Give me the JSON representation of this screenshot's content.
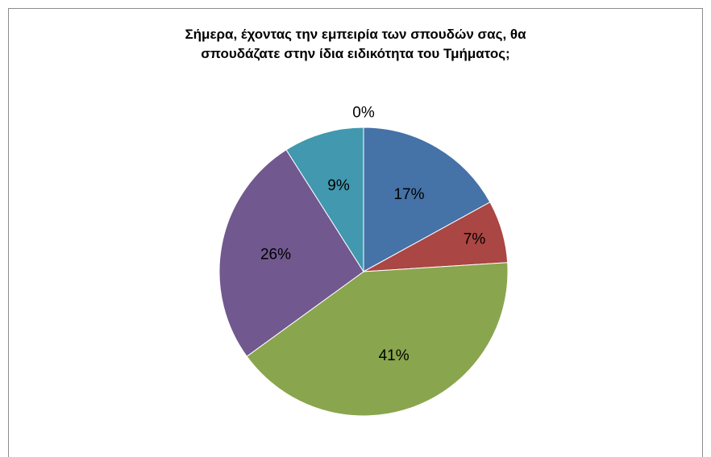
{
  "chart_data": {
    "type": "pie",
    "title": "Σήμερα, έχοντας την εμπειρία των σπουδών σας, θα σπουδάζατε στην ίδια ειδικότητα του Τμήματος;",
    "title_lines": [
      "Σήμερα, έχοντας την εμπειρία των σπουδών σας, θα",
      "σπουδάζατε στην ίδια ειδικότητα του Τμήματος;"
    ],
    "slices": [
      {
        "value": 17,
        "label": "17%",
        "color": "#4572A7"
      },
      {
        "value": 7,
        "label": "7%",
        "color": "#AA4643"
      },
      {
        "value": 41,
        "label": "41%",
        "color": "#89A54E"
      },
      {
        "value": 26,
        "label": "26%",
        "color": "#71588F"
      },
      {
        "value": 9,
        "label": "9%",
        "color": "#4198AF"
      },
      {
        "value": 0,
        "label": "0%",
        "color": "#DB843D"
      }
    ],
    "start_angle": "12 o'clock",
    "direction": "clockwise",
    "legend": "none"
  }
}
